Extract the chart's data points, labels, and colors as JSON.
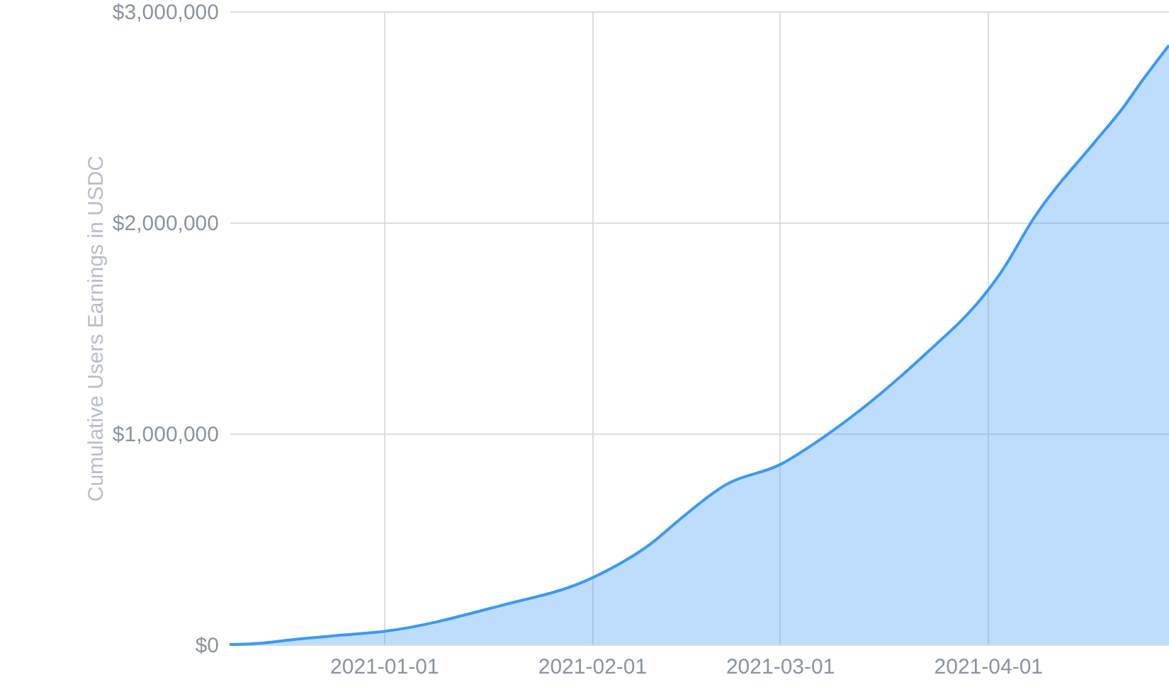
{
  "chart_data": {
    "type": "area",
    "ylabel": "Cumulative Users Earnings in USDC",
    "x": [
      "2020-12-09",
      "2020-12-14",
      "2020-12-19",
      "2020-12-26",
      "2021-01-01",
      "2021-01-18",
      "2021-02-01",
      "2021-02-10",
      "2021-02-14",
      "2021-02-21",
      "2021-03-01",
      "2021-03-08",
      "2021-03-22",
      "2021-04-01",
      "2021-04-03",
      "2021-04-08",
      "2021-04-17",
      "2021-04-21",
      "2021-04-24",
      "2021-04-28"
    ],
    "series": [
      {
        "color": "#3b99f5",
        "values": [
          0,
          7000,
          25000,
          45000,
          62000,
          181000,
          315000,
          483000,
          590000,
          758000,
          852000,
          993000,
          1356000,
          1678000,
          1765000,
          2027000,
          2383000,
          2537000,
          2671000,
          2839000
        ]
      }
    ],
    "xlim": [
      "2020-12-09",
      "2021-04-28"
    ],
    "xticks": [
      "2021-01-01",
      "2021-02-01",
      "2021-03-01",
      "2021-04-01"
    ],
    "ylim": [
      0,
      3000000
    ],
    "yticks": [
      {
        "value": 0,
        "label": "$0"
      },
      {
        "value": 1000000,
        "label": "$1,000,000"
      },
      {
        "value": 2000000,
        "label": "$2,000,000"
      },
      {
        "value": 3000000,
        "label": "$3,000,000"
      }
    ],
    "grid": true
  }
}
